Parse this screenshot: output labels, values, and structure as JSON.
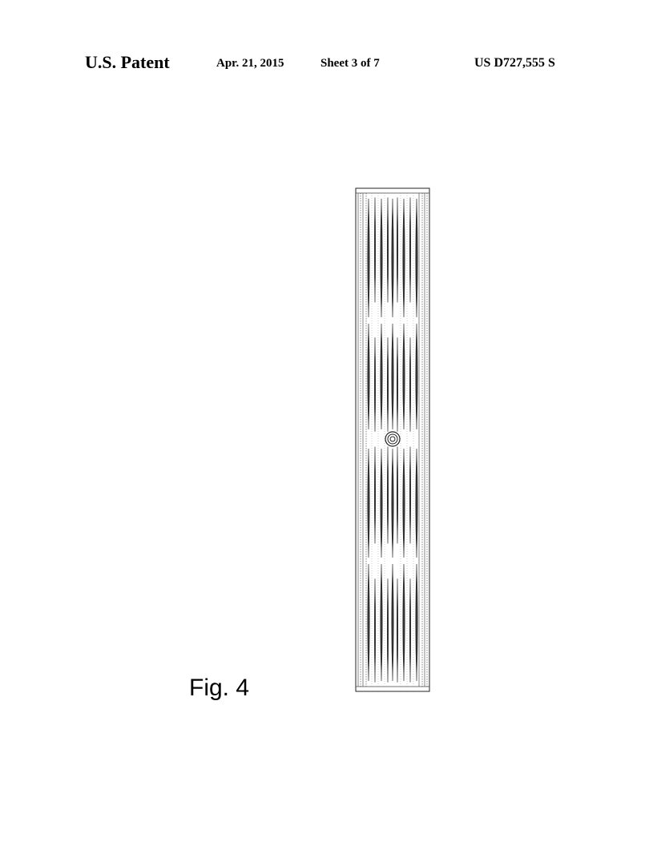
{
  "header": {
    "publication": "U.S. Patent",
    "date": "Apr. 21, 2015",
    "sheet": "Sheet 3 of 7",
    "patent_number": "US D727,555 S"
  },
  "figure": {
    "label": "Fig. 4"
  }
}
